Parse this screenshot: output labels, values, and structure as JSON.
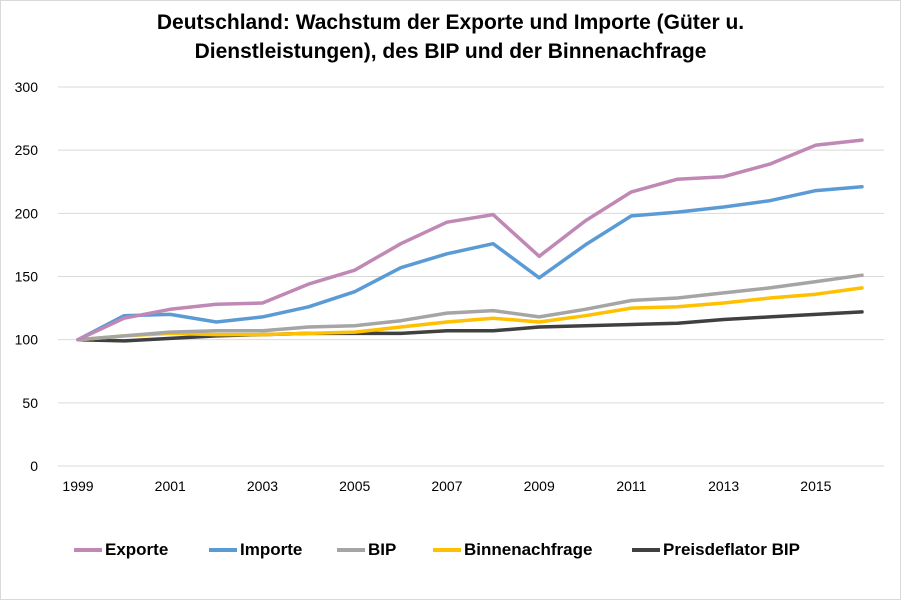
{
  "chart_data": {
    "type": "line",
    "title": "Deutschland: Wachstum der Exporte und Importe (Güter u. Dienstleistungen), des BIP und der Binnenachfrage",
    "title_lines": [
      "Deutschland: Wachstum der Exporte und Importe (Güter u.",
      "Dienstleistungen), des BIP und der Binnenachfrage"
    ],
    "xlabel": "",
    "ylabel": "",
    "x": [
      1999,
      2000,
      2001,
      2002,
      2003,
      2004,
      2005,
      2006,
      2007,
      2008,
      2009,
      2010,
      2011,
      2012,
      2013,
      2014,
      2015,
      2016
    ],
    "x_tick_labels": [
      "1999",
      "2001",
      "2003",
      "2005",
      "2007",
      "2009",
      "2011",
      "2013",
      "2015"
    ],
    "y_tick_labels": [
      "0",
      "50",
      "100",
      "150",
      "200",
      "250",
      "300"
    ],
    "ylim": [
      0,
      300
    ],
    "grid": "horizontal",
    "legend_position": "bottom",
    "series": [
      {
        "name": "Exporte",
        "color": "#c088b4",
        "values": [
          100,
          117,
          124,
          128,
          129,
          144,
          155,
          176,
          193,
          199,
          166,
          194,
          217,
          227,
          229,
          239,
          254,
          258
        ]
      },
      {
        "name": "Importe",
        "color": "#5b9bd5",
        "values": [
          100,
          119,
          120,
          114,
          118,
          126,
          138,
          157,
          168,
          176,
          149,
          175,
          198,
          201,
          205,
          210,
          218,
          221
        ]
      },
      {
        "name": "BIP",
        "color": "#a5a5a5",
        "values": [
          100,
          103,
          106,
          107,
          107,
          110,
          111,
          115,
          121,
          123,
          118,
          124,
          131,
          133,
          137,
          141,
          146,
          151
        ]
      },
      {
        "name": "Binnenachfrage",
        "color": "#ffc000",
        "values": [
          100,
          103,
          105,
          104,
          104,
          105,
          106,
          110,
          114,
          117,
          114,
          119,
          125,
          126,
          129,
          133,
          136,
          141
        ]
      },
      {
        "name": "Preisdeflator BIP",
        "color": "#404040",
        "values": [
          100,
          99,
          101,
          103,
          104,
          105,
          105,
          105,
          107,
          107,
          110,
          111,
          112,
          113,
          116,
          118,
          120,
          122
        ]
      }
    ]
  }
}
